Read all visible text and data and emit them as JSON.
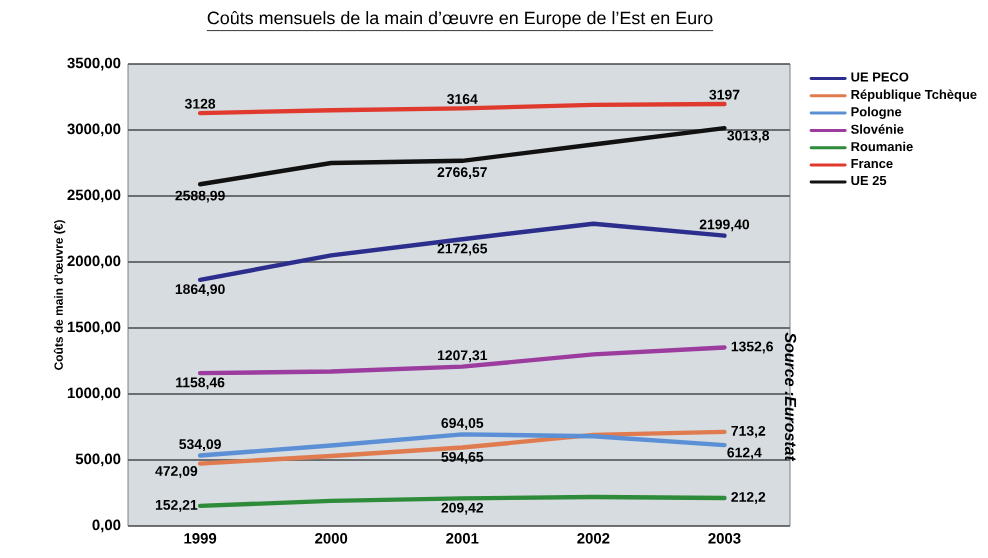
{
  "chart_data": {
    "type": "line",
    "title": "Coûts mensuels de la main d’œuvre en Europe de l’Est en Euro",
    "ylabel": "Coûts de main d’œuvre (€)",
    "categories": [
      "1999",
      "2000",
      "2001",
      "2002",
      "2003"
    ],
    "series": [
      {
        "name": "UE PECO",
        "color": "#2b2e8c",
        "values": [
          1864.9,
          2050,
          2172.65,
          2290,
          2199.4
        ],
        "value_labels": [
          "1864,90",
          null,
          "2172,65",
          null,
          "2199,40"
        ]
      },
      {
        "name": "République Tchèque",
        "color": "#e07b4f",
        "values": [
          472.09,
          530,
          594.65,
          690,
          713.2
        ],
        "value_labels": [
          "472,09",
          null,
          "594,65",
          null,
          "713,2"
        ]
      },
      {
        "name": "Pologne",
        "color": "#5b8fd6",
        "values": [
          534.09,
          610,
          694.05,
          680,
          612.4
        ],
        "value_labels": [
          "534,09",
          null,
          "694,05",
          null,
          "612,4"
        ]
      },
      {
        "name": "Slovénie",
        "color": "#9b3c9e",
        "values": [
          1158.46,
          1170,
          1207.31,
          1300,
          1352.6
        ],
        "value_labels": [
          "1158,46",
          null,
          "1207,31",
          null,
          "1352,6"
        ]
      },
      {
        "name": "Roumanie",
        "color": "#2e8b3a",
        "values": [
          152.21,
          190,
          209.42,
          220,
          212.2
        ],
        "value_labels": [
          "152,21",
          null,
          "209,42",
          null,
          "212,2"
        ]
      },
      {
        "name": "France",
        "color": "#e03a2e",
        "values": [
          3128,
          3150,
          3164,
          3190,
          3197
        ],
        "value_labels": [
          "3128",
          null,
          "3164",
          null,
          "3197"
        ]
      },
      {
        "name": "UE 25",
        "color": "#111111",
        "values": [
          2588.99,
          2750,
          2766.57,
          2890,
          3013.8
        ],
        "value_labels": [
          "2588,99",
          null,
          "2766,57",
          null,
          "3013,8"
        ]
      }
    ],
    "ylim": [
      0,
      3500
    ],
    "yticks": [
      {
        "value": 0,
        "label": "0,00"
      },
      {
        "value": 500,
        "label": "500,00"
      },
      {
        "value": 1000,
        "label": "1000,00"
      },
      {
        "value": 1500,
        "label": "1500,00"
      },
      {
        "value": 2000,
        "label": "2000,00"
      },
      {
        "value": 2500,
        "label": "2500,00"
      },
      {
        "value": 3000,
        "label": "3000,00"
      },
      {
        "value": 3500,
        "label": "3500,00"
      }
    ],
    "grid": "y",
    "legend": "right",
    "line_style": "solid",
    "annotations": [
      "Source :Eurostat"
    ]
  }
}
